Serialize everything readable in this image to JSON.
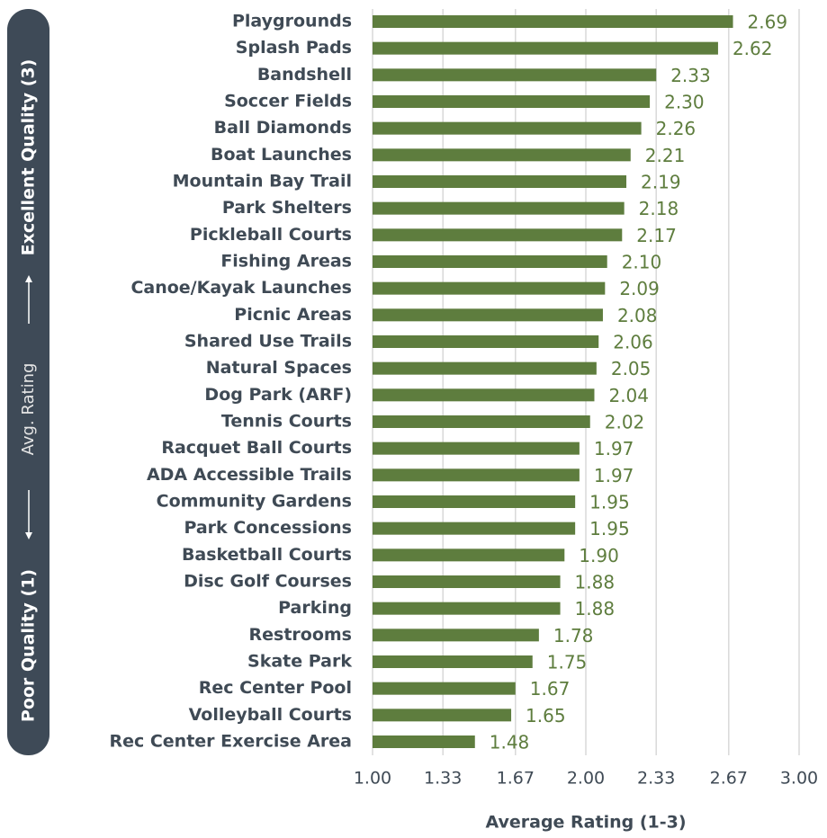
{
  "chart_data": {
    "type": "barh",
    "categories": [
      "Playgrounds",
      "Splash Pads",
      "Bandshell",
      "Soccer Fields",
      "Ball Diamonds",
      "Boat Launches",
      "Mountain Bay Trail",
      "Park Shelters",
      "Pickleball Courts",
      "Fishing Areas",
      "Canoe/Kayak Launches",
      "Picnic Areas",
      "Shared Use Trails",
      "Natural Spaces",
      "Dog Park (ARF)",
      "Tennis Courts",
      "Racquet Ball Courts",
      "ADA Accessible Trails",
      "Community Gardens",
      "Park Concessions",
      "Basketball Courts",
      "Disc Golf Courses",
      "Parking",
      "Restrooms",
      "Skate Park",
      "Rec Center Pool",
      "Volleyball Courts",
      "Rec Center Exercise Area"
    ],
    "values": [
      2.69,
      2.62,
      2.33,
      2.3,
      2.26,
      2.21,
      2.19,
      2.18,
      2.17,
      2.1,
      2.09,
      2.08,
      2.06,
      2.05,
      2.04,
      2.02,
      1.97,
      1.97,
      1.95,
      1.95,
      1.9,
      1.88,
      1.88,
      1.78,
      1.75,
      1.67,
      1.65,
      1.48
    ],
    "value_labels": [
      "2.69",
      "2.62",
      "2.33",
      "2.30",
      "2.26",
      "2.21",
      "2.19",
      "2.18",
      "2.17",
      "2.10",
      "2.09",
      "2.08",
      "2.06",
      "2.05",
      "2.04",
      "2.02",
      "1.97",
      "1.97",
      "1.95",
      "1.95",
      "1.90",
      "1.88",
      "1.88",
      "1.78",
      "1.75",
      "1.67",
      "1.65",
      "1.48"
    ],
    "color": "#5e7d3e",
    "xlim": [
      1.0,
      3.0
    ],
    "xticks": [
      {
        "value": 1.0,
        "label": "1.00"
      },
      {
        "value": 1.33,
        "label": "1.33"
      },
      {
        "value": 1.67,
        "label": "1.67"
      },
      {
        "value": 2.0,
        "label": "2.00"
      },
      {
        "value": 2.33,
        "label": "2.33"
      },
      {
        "value": 2.67,
        "label": "2.67"
      },
      {
        "value": 3.0,
        "label": "3.00"
      }
    ],
    "grid": true,
    "xlabel": "Average Rating (1-3)",
    "ylabel_low": "Poor Quality (1)",
    "ylabel_mid": "Avg. Rating",
    "ylabel_high": "Excellent Quality (3)"
  }
}
